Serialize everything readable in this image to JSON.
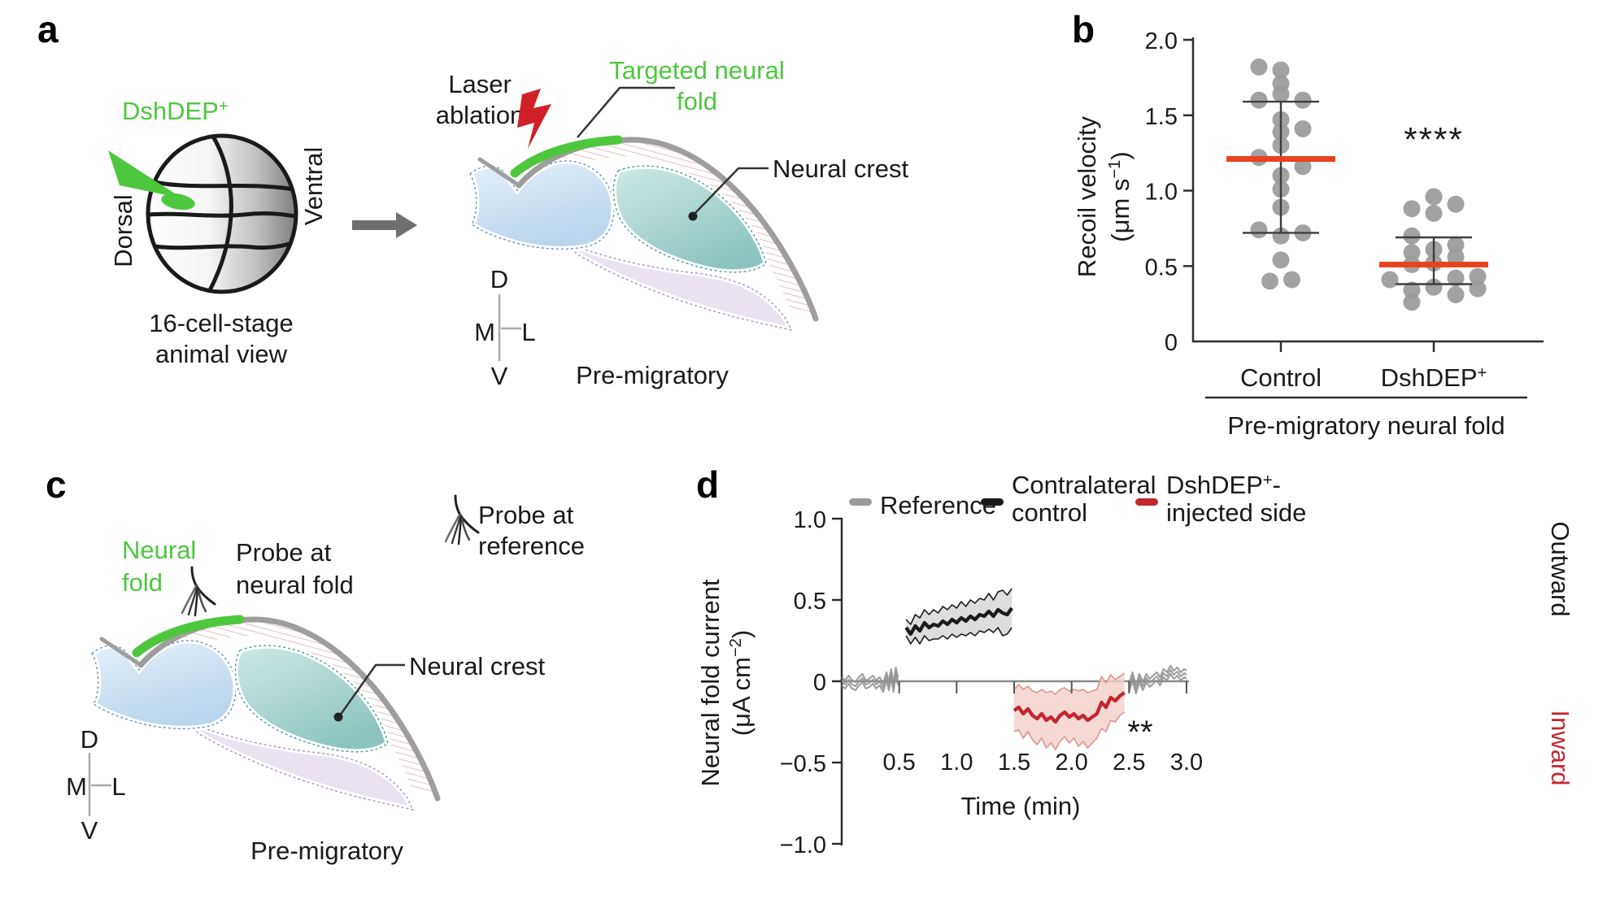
{
  "figure": {
    "panel_labels": {
      "a": "a",
      "b": "b",
      "c": "c",
      "d": "d"
    }
  },
  "colors": {
    "green": "#4ec73f",
    "laser_red": "#cf2127",
    "median_red": "#e9421e",
    "injected_red": "#c2272e",
    "reference_gray": "#8f8f8f",
    "control_black": "#1a1a1a",
    "dot_gray": "#9a9a9a"
  },
  "panel_a": {
    "injection_base": "DshDEP",
    "injection_sup": "+",
    "dorsal": "Dorsal",
    "ventral": "Ventral",
    "caption_line1": "16-cell-stage",
    "caption_line2": "animal view",
    "laser_line1": "Laser",
    "laser_line2": "ablation",
    "targeted_line1": "Targeted neural",
    "targeted_line2": "fold",
    "neural_crest": "Neural crest",
    "stage": "Pre-migratory",
    "axis_d": "D",
    "axis_v": "V",
    "axis_m": "M",
    "axis_l": "L"
  },
  "panel_c": {
    "neural_line1": "Neural",
    "neural_line2": "fold",
    "probe_fold_line1": "Probe at",
    "probe_fold_line2": "neural fold",
    "probe_ref_line1": "Probe at",
    "probe_ref_line2": "reference",
    "neural_crest": "Neural crest",
    "stage": "Pre-migratory",
    "axis_d": "D",
    "axis_v": "V",
    "axis_m": "M",
    "axis_l": "L"
  },
  "chart_data": [
    {
      "panel": "b",
      "type": "scatter",
      "title": "",
      "ylabel": "Recoil velocity (μm s−1)",
      "ylabel_line1": "Recoil velocity",
      "ylabel_line2_pre": "(μm s",
      "ylabel_line2_sup": "−1",
      "ylabel_line2_post": ")",
      "ylim": [
        0,
        2.0
      ],
      "ytick_values": [
        2.0,
        1.5,
        1.0,
        0.5,
        0
      ],
      "ytick_labels": [
        "2.0",
        "1.5",
        "1.0",
        "0.5",
        "0"
      ],
      "group_axis_label": "Pre-migratory neural fold",
      "groups": [
        {
          "label": "Control",
          "label_base": "Control",
          "label_sup": "",
          "median": 1.21,
          "whisker_low": 0.72,
          "whisker_high": 1.59,
          "significance": "",
          "points": [
            [
              -1,
              1.82
            ],
            [
              0,
              1.8
            ],
            [
              0,
              1.71
            ],
            [
              0,
              1.64
            ],
            [
              -1,
              1.6
            ],
            [
              1,
              1.6
            ],
            [
              0,
              1.47
            ],
            [
              1,
              1.41
            ],
            [
              0,
              1.39
            ],
            [
              0,
              1.3
            ],
            [
              -1,
              1.22
            ],
            [
              1,
              1.16
            ],
            [
              0,
              1.1
            ],
            [
              0,
              1.01
            ],
            [
              0,
              0.89
            ],
            [
              -1,
              0.74
            ],
            [
              1,
              0.72
            ],
            [
              0,
              0.7
            ],
            [
              0,
              0.54
            ],
            [
              -0.5,
              0.4
            ],
            [
              0.5,
              0.41
            ]
          ]
        },
        {
          "label": "DshDEP+",
          "label_base": "DshDEP",
          "label_sup": "+",
          "median": 0.51,
          "whisker_low": 0.38,
          "whisker_high": 0.69,
          "significance": "****",
          "points": [
            [
              0,
              0.96
            ],
            [
              -1,
              0.88
            ],
            [
              0,
              0.85
            ],
            [
              1,
              0.91
            ],
            [
              -1,
              0.7
            ],
            [
              0,
              0.61
            ],
            [
              1,
              0.64
            ],
            [
              -1,
              0.59
            ],
            [
              -1,
              0.51
            ],
            [
              0,
              0.52
            ],
            [
              1,
              0.56
            ],
            [
              -2,
              0.41
            ],
            [
              1,
              0.42
            ],
            [
              2,
              0.43
            ],
            [
              -1,
              0.34
            ],
            [
              0,
              0.36
            ],
            [
              1,
              0.31
            ],
            [
              2,
              0.35
            ],
            [
              -1,
              0.26
            ]
          ]
        }
      ]
    },
    {
      "panel": "d",
      "type": "line",
      "title": "",
      "xlabel": "Time (min)",
      "ylabel": "Neural fold current (μA cm−2)",
      "ylabel_line1": "Neural fold current",
      "ylabel_line2_pre": "(μA cm",
      "ylabel_line2_sup": "−2",
      "ylabel_line2_post": ")",
      "xlim": [
        0,
        3.0
      ],
      "ylim": [
        -1.0,
        1.0
      ],
      "xtick_values": [
        0.5,
        1.0,
        1.5,
        2.0,
        2.5,
        3.0
      ],
      "xtick_labels": [
        "0.5",
        "1.0",
        "1.5",
        "2.0",
        "2.5",
        "3.0"
      ],
      "ytick_values": [
        1.0,
        0.5,
        0,
        -0.5,
        -1.0
      ],
      "ytick_labels": [
        "1.0",
        "0.5",
        "0",
        "−0.5",
        "−1.0"
      ],
      "direction_positive": "Outward",
      "direction_negative": "Inward",
      "significance": "**",
      "legend": [
        {
          "line1_base": "Reference",
          "line1_sup": "",
          "line1_post": "",
          "line2": ""
        },
        {
          "line1_base": "Contralateral",
          "line1_sup": "",
          "line1_post": "",
          "line2": "control"
        },
        {
          "line1_base": "DshDEP",
          "line1_sup": "+",
          "line1_post": "-",
          "line2": "injected side"
        }
      ],
      "series": [
        {
          "name": "Reference",
          "color": "#8f8f8f",
          "segments": [
            [
              [
                0,
                0.0
              ],
              [
                0.03,
                -0.02
              ],
              [
                0.06,
                0.01
              ],
              [
                0.09,
                -0.02
              ],
              [
                0.12,
                -0.03
              ],
              [
                0.15,
                0.0
              ],
              [
                0.18,
                0.02
              ],
              [
                0.21,
                -0.02
              ],
              [
                0.24,
                -0.01
              ],
              [
                0.27,
                0.01
              ],
              [
                0.3,
                -0.02
              ],
              [
                0.33,
                0.0
              ],
              [
                0.36,
                -0.04
              ],
              [
                0.39,
                0.03
              ],
              [
                0.41,
                -0.03
              ],
              [
                0.43,
                0.05
              ],
              [
                0.45,
                -0.04
              ],
              [
                0.47,
                0.06
              ],
              [
                0.49,
                0.0
              ]
            ],
            [
              [
                2.5,
                -0.04
              ],
              [
                2.53,
                0.03
              ],
              [
                2.56,
                -0.05
              ],
              [
                2.59,
                0.02
              ],
              [
                2.62,
                -0.03
              ],
              [
                2.65,
                0.02
              ],
              [
                2.68,
                -0.01
              ],
              [
                2.71,
                0.01
              ],
              [
                2.74,
                0.03
              ],
              [
                2.77,
                0.0
              ],
              [
                2.8,
                0.05
              ],
              [
                2.83,
                0.03
              ],
              [
                2.86,
                0.07
              ],
              [
                2.89,
                0.04
              ],
              [
                2.92,
                0.06
              ],
              [
                2.95,
                0.03
              ],
              [
                2.98,
                0.05
              ],
              [
                3.0,
                0.04
              ]
            ]
          ]
        },
        {
          "name": "Contralateral control",
          "color": "#1a1a1a",
          "band_color": "#d6d6d6",
          "edge_color": "#1a1a1a",
          "points": [
            [
              0.56,
              0.33,
              0.05
            ],
            [
              0.6,
              0.29,
              0.06
            ],
            [
              0.64,
              0.34,
              0.07
            ],
            [
              0.68,
              0.31,
              0.08
            ],
            [
              0.72,
              0.36,
              0.08
            ],
            [
              0.76,
              0.33,
              0.08
            ],
            [
              0.8,
              0.35,
              0.09
            ],
            [
              0.84,
              0.34,
              0.08
            ],
            [
              0.88,
              0.37,
              0.09
            ],
            [
              0.92,
              0.35,
              0.09
            ],
            [
              0.96,
              0.38,
              0.09
            ],
            [
              1.0,
              0.36,
              0.09
            ],
            [
              1.04,
              0.39,
              0.1
            ],
            [
              1.08,
              0.37,
              0.09
            ],
            [
              1.12,
              0.4,
              0.1
            ],
            [
              1.16,
              0.38,
              0.1
            ],
            [
              1.2,
              0.41,
              0.1
            ],
            [
              1.24,
              0.4,
              0.1
            ],
            [
              1.28,
              0.43,
              0.11
            ],
            [
              1.32,
              0.4,
              0.1
            ],
            [
              1.36,
              0.44,
              0.11
            ],
            [
              1.4,
              0.42,
              0.14
            ],
            [
              1.44,
              0.41,
              0.12
            ],
            [
              1.48,
              0.45,
              0.12
            ]
          ]
        },
        {
          "name": "DshDEP+-injected side",
          "color": "#c2272e",
          "band_color": "#f4cfcb",
          "edge_color": "#dd948e",
          "points": [
            [
              1.5,
              -0.18,
              0.13
            ],
            [
              1.54,
              -0.16,
              0.14
            ],
            [
              1.58,
              -0.2,
              0.15
            ],
            [
              1.62,
              -0.17,
              0.14
            ],
            [
              1.66,
              -0.21,
              0.15
            ],
            [
              1.7,
              -0.23,
              0.16
            ],
            [
              1.74,
              -0.2,
              0.15
            ],
            [
              1.78,
              -0.24,
              0.17
            ],
            [
              1.82,
              -0.22,
              0.16
            ],
            [
              1.86,
              -0.25,
              0.17
            ],
            [
              1.9,
              -0.21,
              0.16
            ],
            [
              1.94,
              -0.19,
              0.15
            ],
            [
              1.98,
              -0.22,
              0.16
            ],
            [
              2.02,
              -0.2,
              0.15
            ],
            [
              2.06,
              -0.23,
              0.17
            ],
            [
              2.1,
              -0.21,
              0.16
            ],
            [
              2.14,
              -0.24,
              0.17
            ],
            [
              2.18,
              -0.22,
              0.16
            ],
            [
              2.22,
              -0.2,
              0.15
            ],
            [
              2.26,
              -0.13,
              0.16
            ],
            [
              2.3,
              -0.16,
              0.15
            ],
            [
              2.34,
              -0.1,
              0.14
            ],
            [
              2.38,
              -0.12,
              0.13
            ],
            [
              2.42,
              -0.09,
              0.12
            ],
            [
              2.46,
              -0.07,
              0.12
            ]
          ]
        }
      ]
    }
  ]
}
